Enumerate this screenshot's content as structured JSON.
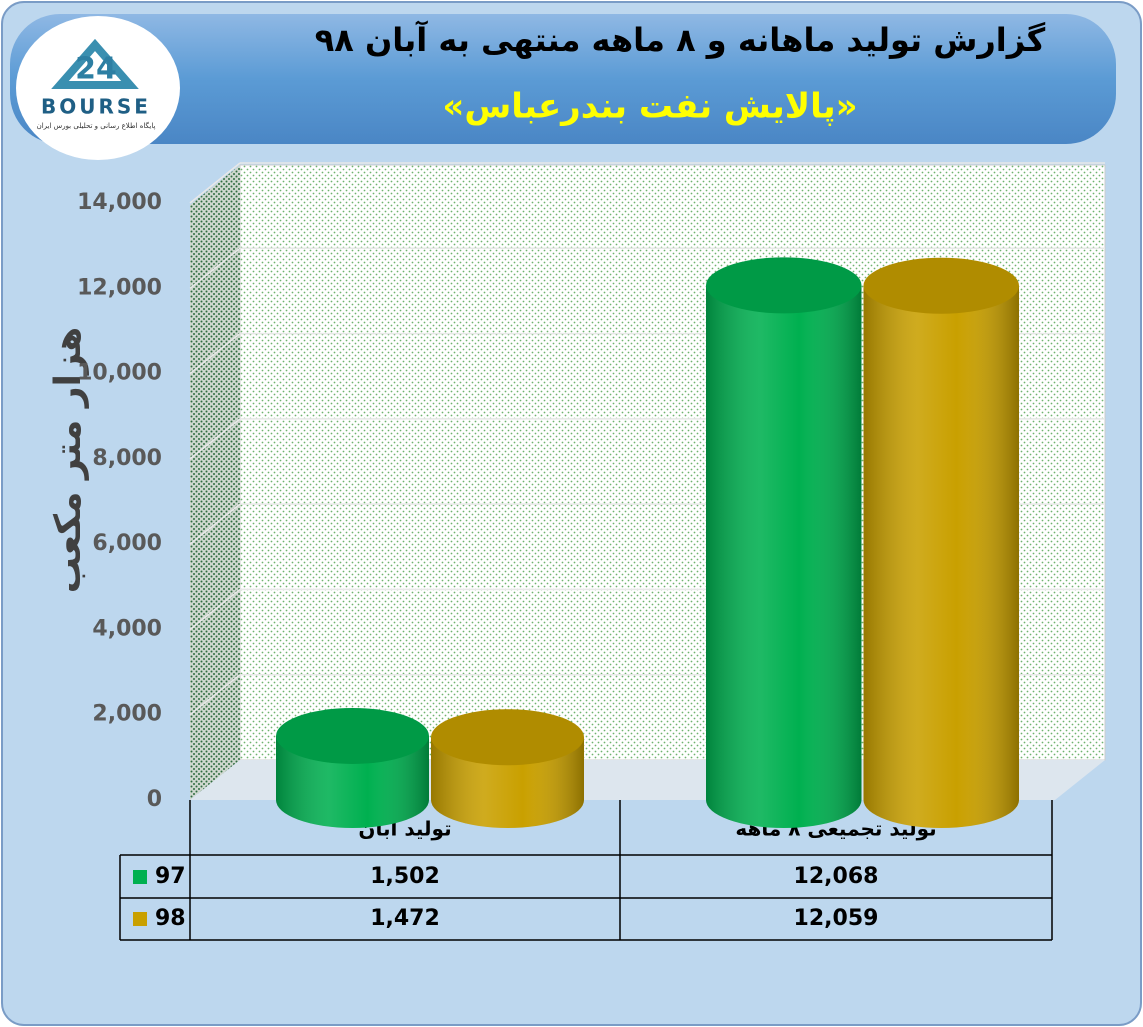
{
  "chart_data": {
    "type": "bar",
    "title": "گزارش تولید ماهانه و ۸ ماهه منتهی به آبان ۹۸",
    "subtitle": "«پالایش نفت بندرعباس»",
    "y_label": "هزار متر مکعب",
    "logo": {
      "number": "24",
      "text": "BOURSE",
      "tagline": "پایگاه اطلاع رسانی و تحلیلی بورس ایران"
    },
    "categories": [
      "تولید آبان",
      "تولید تجمیعی ۸ ماهه"
    ],
    "series": [
      {
        "name": "97",
        "color": "#00b050",
        "values": [
          1502,
          12068
        ],
        "value_labels": [
          "1,502",
          "12,068"
        ]
      },
      {
        "name": "98",
        "color": "#c9a000",
        "values": [
          1472,
          12059
        ],
        "value_labels": [
          "1,472",
          "12,059"
        ]
      }
    ],
    "ylim": [
      0,
      14000
    ],
    "yticks": [
      0,
      {
        "value": 2000,
        "label": "2,000"
      },
      {
        "value": 4000,
        "label": "4,000"
      },
      {
        "value": 6000,
        "label": "6,000"
      },
      {
        "value": 8000,
        "label": "8,000"
      },
      {
        "value": 10000,
        "label": "10,000"
      },
      {
        "value": 12000,
        "label": "12,000"
      },
      {
        "value": 14000,
        "label": "14,000"
      }
    ],
    "grid": true
  }
}
